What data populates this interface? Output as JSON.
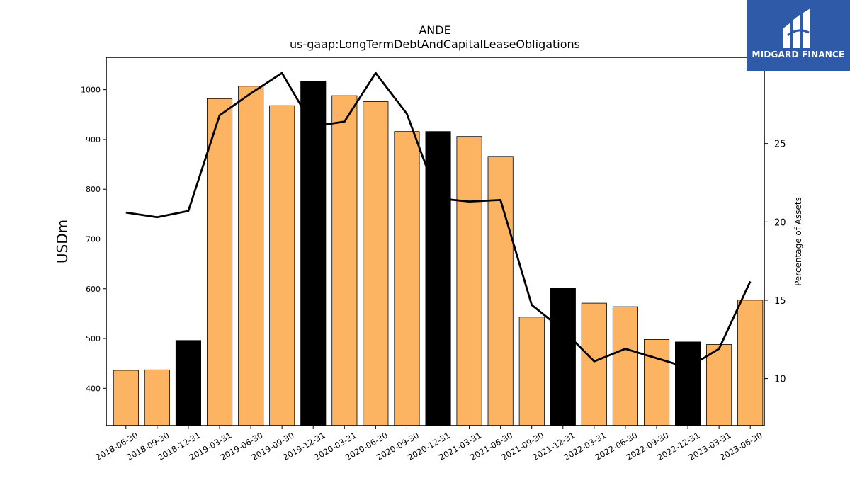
{
  "chart_data": {
    "type": "bar",
    "title": "ANDE",
    "subtitle": "us-gaap:LongTermDebtAndCapitalLeaseObligations",
    "ylabel": "USDm",
    "y2label": "Percentage of Assets",
    "ylim": [
      325,
      1065
    ],
    "y2lim": [
      7,
      30.5
    ],
    "yticks": [
      400,
      500,
      600,
      700,
      800,
      900,
      1000
    ],
    "y2ticks": [
      10,
      15,
      20,
      25
    ],
    "grid": false,
    "categories": [
      "2018-06-30",
      "2018-09-30",
      "2018-12-31",
      "2019-03-31",
      "2019-06-30",
      "2019-09-30",
      "2019-12-31",
      "2020-03-31",
      "2020-06-30",
      "2020-09-30",
      "2020-12-31",
      "2021-03-31",
      "2021-06-30",
      "2021-09-30",
      "2021-12-31",
      "2022-03-31",
      "2022-06-30",
      "2022-09-30",
      "2022-12-31",
      "2023-03-31",
      "2023-06-30"
    ],
    "series": [
      {
        "type": "bar",
        "axis": "left",
        "values": [
          436,
          437,
          496,
          982,
          1007,
          968,
          1017,
          988,
          976,
          916,
          916,
          906,
          866,
          543,
          601,
          571,
          564,
          498,
          493,
          488,
          577
        ]
      },
      {
        "type": "line",
        "axis": "right",
        "values": [
          20.6,
          20.3,
          20.7,
          26.8,
          28.2,
          29.5,
          26.1,
          26.4,
          29.5,
          26.9,
          21.5,
          21.3,
          21.4,
          14.7,
          13.1,
          11.1,
          11.9,
          11.3,
          10.7,
          11.9,
          16.2
        ]
      }
    ],
    "colors": {
      "bar_regular": "#fdb462",
      "bar_year_end": "#000000",
      "line": "#000000"
    }
  },
  "logo": {
    "text": "MIDGARD FINANCE",
    "background": "#2f5aa8"
  }
}
